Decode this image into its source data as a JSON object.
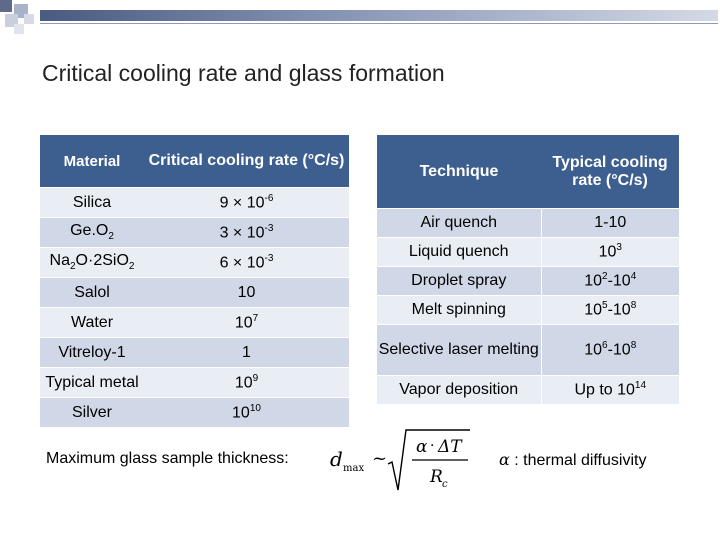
{
  "title": "Critical cooling rate and glass formation",
  "table_left": {
    "headers": [
      "Material",
      "Critical cooling rate (°C/s)"
    ],
    "rows": [
      {
        "material": "Silica",
        "rate_mantissa": "9 × 10",
        "rate_exp": "-6"
      },
      {
        "material_main": "Ge.O",
        "material_sub": "2",
        "rate_mantissa": "3 × 10",
        "rate_exp": "-3"
      },
      {
        "material_a": "Na",
        "material_sub1": "2",
        "material_b": "O·2SiO",
        "material_sub2": "2",
        "rate_mantissa": "6 × 10",
        "rate_exp": "-3"
      },
      {
        "material": "Salol",
        "rate": "10"
      },
      {
        "material": "Water",
        "rate_base": "10",
        "rate_exp": "7"
      },
      {
        "material": "Vitreloy-1",
        "rate": "1"
      },
      {
        "material": "Typical metal",
        "rate_base": "10",
        "rate_exp": "9"
      },
      {
        "material": "Silver",
        "rate_base": "10",
        "rate_exp": "10"
      }
    ]
  },
  "table_right": {
    "headers": [
      "Technique",
      "Typical cooling rate (°C/s)"
    ],
    "rows": [
      {
        "technique": "Air quench",
        "rate": "1-10"
      },
      {
        "technique": "Liquid quench",
        "base": "10",
        "exp": "3"
      },
      {
        "technique": "Droplet spray",
        "base1": "10",
        "exp1": "2",
        "sep": "-",
        "base2": "10",
        "exp2": "4"
      },
      {
        "technique": "Melt spinning",
        "base1": "10",
        "exp1": "5",
        "sep": "-",
        "base2": "10",
        "exp2": "8"
      },
      {
        "technique": "Selective laser melting",
        "base1": "10",
        "exp1": "6",
        "sep": "-",
        "base2": "10",
        "exp2": "8"
      },
      {
        "technique": "Vapor deposition",
        "prefix": "Up to ",
        "base": "10",
        "exp": "14"
      }
    ]
  },
  "footer": {
    "thickness_label": "Maximum glass sample thickness:",
    "formula": {
      "d": "d",
      "d_sub": "max",
      "approx": "~",
      "numerator_alpha": "α",
      "numerator_dot": "·",
      "numerator_delta_t": "ΔT",
      "denominator_r": "R",
      "denominator_sub": "c"
    },
    "alpha_symbol": "α",
    "alpha_desc": " : thermal diffusivity"
  },
  "colors": {
    "header_bg": "#3c5f90",
    "row_dark": "#d0d8e8",
    "row_light": "#e9edf4",
    "accent_bar": "#4a5a80"
  }
}
